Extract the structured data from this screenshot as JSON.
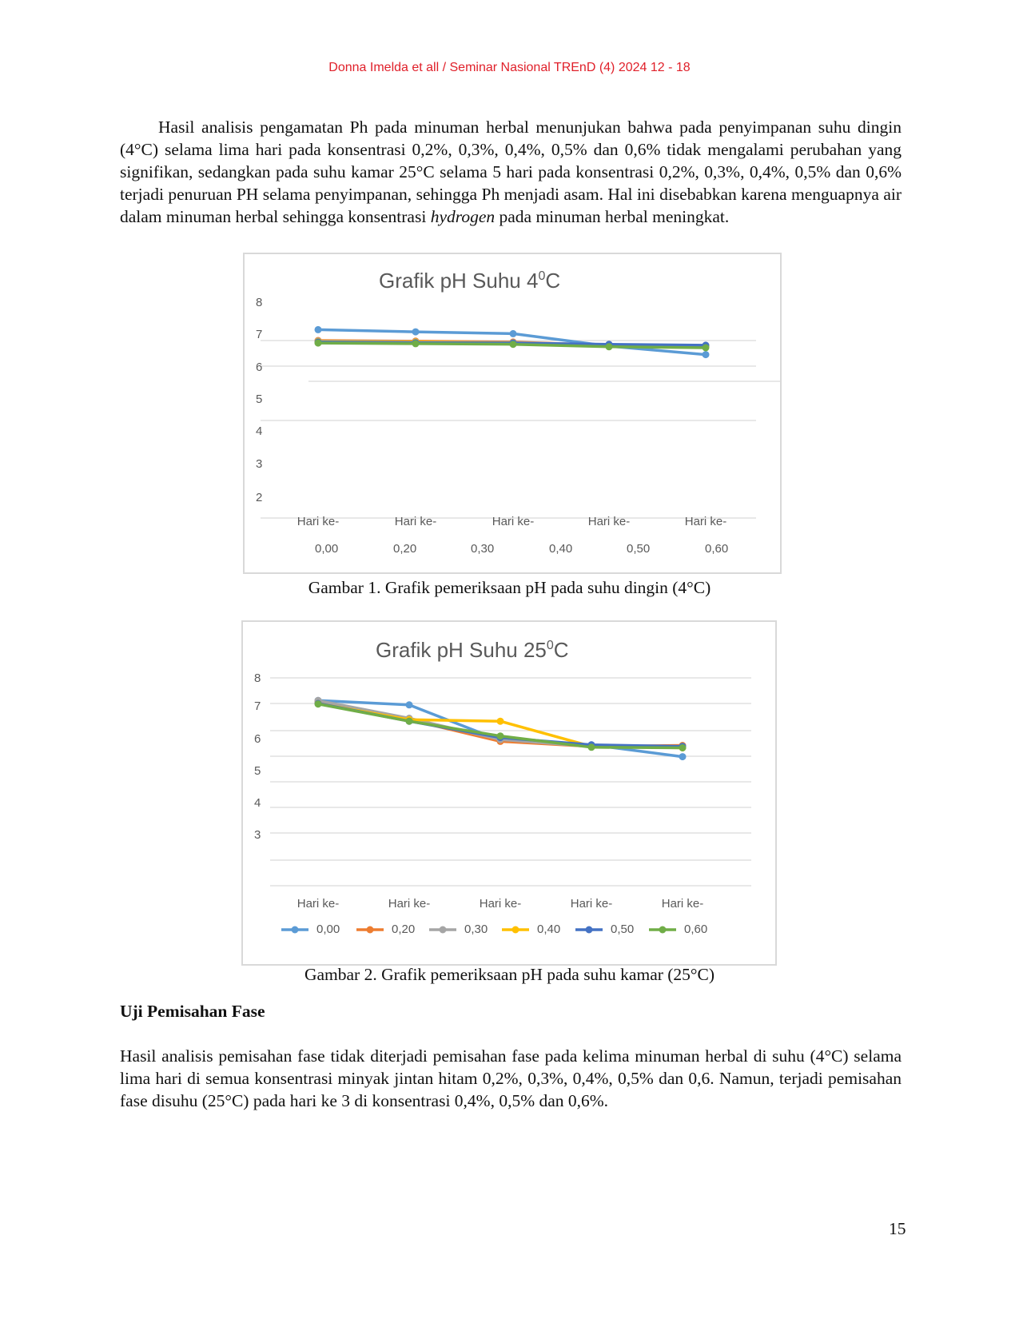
{
  "header": {
    "running_head": "Donna Imelda et all / Seminar Nasional TREnD (4) 2024 12 - 18"
  },
  "body": {
    "paragraph1_a": "Hasil analisis pengamatan Ph pada minuman herbal menunjukan bahwa pada penyimpanan suhu dingin (4°C) selama lima hari pada konsentrasi 0,2%, 0,3%, 0,4%, 0,5% dan 0,6% tidak mengalami perubahan yang signifikan, sedangkan pada suhu kamar 25°C selama 5 hari pada konsentrasi 0,2%, 0,3%, 0,4%, 0,5% dan 0,6% terjadi penuruan PH selama penyimpanan, sehingga Ph menjadi asam. Hal ini disebabkan karena menguapnya air dalam minuman herbal sehingga konsentrasi ",
    "paragraph1_italic": "hydrogen",
    "paragraph1_b": " pada minuman herbal meningkat.",
    "figure1_caption": "Gambar 1.  Grafik pemeriksaan pH pada suhu dingin (4°C)",
    "figure2_caption": "Gambar 2.  Grafik pemeriksaan pH pada suhu kamar (25°C)",
    "section_heading": "Uji Pemisahan Fase",
    "paragraph2": "Hasil analisis pemisahan fase tidak diterjadi pemisahan fase pada kelima minuman herbal di suhu (4°C) selama lima hari di semua konsentrasi minyak jintan hitam 0,2%, 0,3%, 0,4%, 0,5% dan 0,6. Namun, terjadi pemisahan fase disuhu (25°C) pada hari ke 3 di konsentrasi 0,4%, 0,5% dan 0,6%."
  },
  "footer": {
    "page_number": "15"
  },
  "chart_data": [
    {
      "type": "line",
      "title": "Grafik  pH Suhu 4",
      "title_superscript": "0",
      "title_suffix": "C",
      "categories": [
        "Hari ke-",
        "Hari ke-",
        "Hari ke-",
        "Hari ke-",
        "Hari ke-"
      ],
      "y_tick_labels": [
        "8",
        "7",
        "6",
        "5",
        "4",
        "3",
        "2"
      ],
      "legend_labels": [
        "0,00",
        "0,20",
        "0,30",
        "0,40",
        "0,50",
        "0,60"
      ],
      "legend_markers": false,
      "series": [
        {
          "name": "0,00",
          "color": "#5b9bd5",
          "values": [
            7.35,
            7.28,
            7.22,
            6.82,
            6.55
          ]
        },
        {
          "name": "0,20",
          "color": "#ed7d31",
          "values": [
            7.0,
            6.98,
            6.95,
            6.85,
            6.82
          ]
        },
        {
          "name": "0,30",
          "color": "#a5a5a5",
          "values": [
            6.98,
            6.96,
            6.93,
            6.86,
            6.84
          ]
        },
        {
          "name": "0,40",
          "color": "#ffc000",
          "values": [
            6.97,
            6.95,
            6.92,
            6.86,
            6.84
          ]
        },
        {
          "name": "0,50",
          "color": "#4472c4",
          "values": [
            6.95,
            6.93,
            6.92,
            6.88,
            6.85
          ]
        },
        {
          "name": "0,60",
          "color": "#70ad47",
          "values": [
            6.92,
            6.9,
            6.88,
            6.8,
            6.77
          ]
        }
      ]
    },
    {
      "type": "line",
      "title": "Grafik pH Suhu 25",
      "title_superscript": "0",
      "title_suffix": "C",
      "categories": [
        "Hari ke-",
        "Hari ke-",
        "Hari ke-",
        "Hari ke-",
        "Hari ke-"
      ],
      "y_tick_labels": [
        "8",
        "7",
        "6",
        "5",
        "4",
        "3"
      ],
      "legend_labels": [
        "0,00",
        "0,20",
        "0,30",
        "0,40",
        "0,50",
        "0,60"
      ],
      "legend_markers": true,
      "series": [
        {
          "name": "0,00",
          "color": "#5b9bd5",
          "values": [
            7.1,
            6.95,
            5.75,
            5.6,
            5.2
          ]
        },
        {
          "name": "0,20",
          "color": "#ed7d31",
          "values": [
            7.08,
            6.45,
            5.72,
            5.55,
            5.58
          ]
        },
        {
          "name": "0,30",
          "color": "#a5a5a5",
          "values": [
            7.1,
            6.5,
            5.78,
            5.55,
            5.55
          ]
        },
        {
          "name": "0,40",
          "color": "#ffc000",
          "values": [
            7.0,
            6.45,
            6.4,
            5.55,
            5.5
          ]
        },
        {
          "name": "0,50",
          "color": "#4472c4",
          "values": [
            7.0,
            6.4,
            5.85,
            5.6,
            5.55
          ]
        },
        {
          "name": "0,60",
          "color": "#70ad47",
          "values": [
            6.98,
            6.4,
            5.9,
            5.52,
            5.5
          ]
        }
      ]
    }
  ]
}
